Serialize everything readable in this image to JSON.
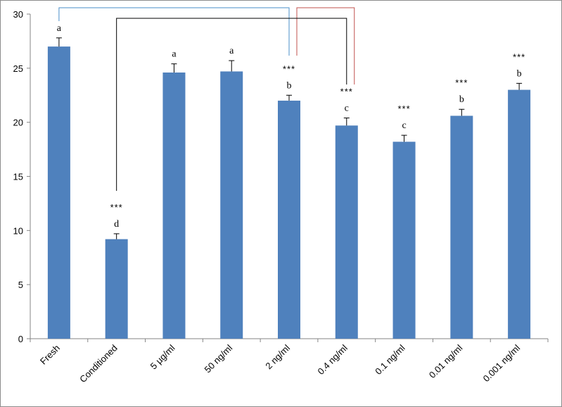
{
  "chart_data": {
    "type": "bar",
    "title": "",
    "xlabel": "",
    "ylabel": "",
    "ylim": [
      0,
      30
    ],
    "yticks": [
      0,
      5,
      10,
      15,
      20,
      25,
      30
    ],
    "categories": [
      "Fresh",
      "Conditioned",
      "5 µg/ml",
      "50 ng/ml",
      "2 ng/ml",
      "0.4 ng/ml",
      "0.1 ng/ml",
      "0.01 ng/ml",
      "0.001 ng/ml"
    ],
    "values": [
      27.0,
      9.2,
      24.6,
      24.7,
      22.0,
      19.7,
      18.2,
      20.6,
      23.0
    ],
    "errors": [
      0.8,
      0.5,
      0.8,
      1.0,
      0.5,
      0.7,
      0.6,
      0.6,
      0.6
    ],
    "letters": [
      "a",
      "d",
      "a",
      "a",
      "b",
      "c",
      "c",
      "b",
      "b"
    ],
    "significance": [
      "",
      "***",
      "",
      "",
      "***",
      "***",
      "***",
      "***",
      "***"
    ],
    "bar_color": "#4f81bd",
    "grid": false,
    "comparison_brackets": [
      {
        "from": "Fresh",
        "to": "2 ng/ml",
        "color": "#4a8fc9"
      },
      {
        "from": "2 ng/ml",
        "to": "0.4 ng/ml",
        "color": "#c0504d"
      },
      {
        "from": "Conditioned",
        "to": "0.4 ng/ml",
        "color": "#000000"
      }
    ]
  }
}
